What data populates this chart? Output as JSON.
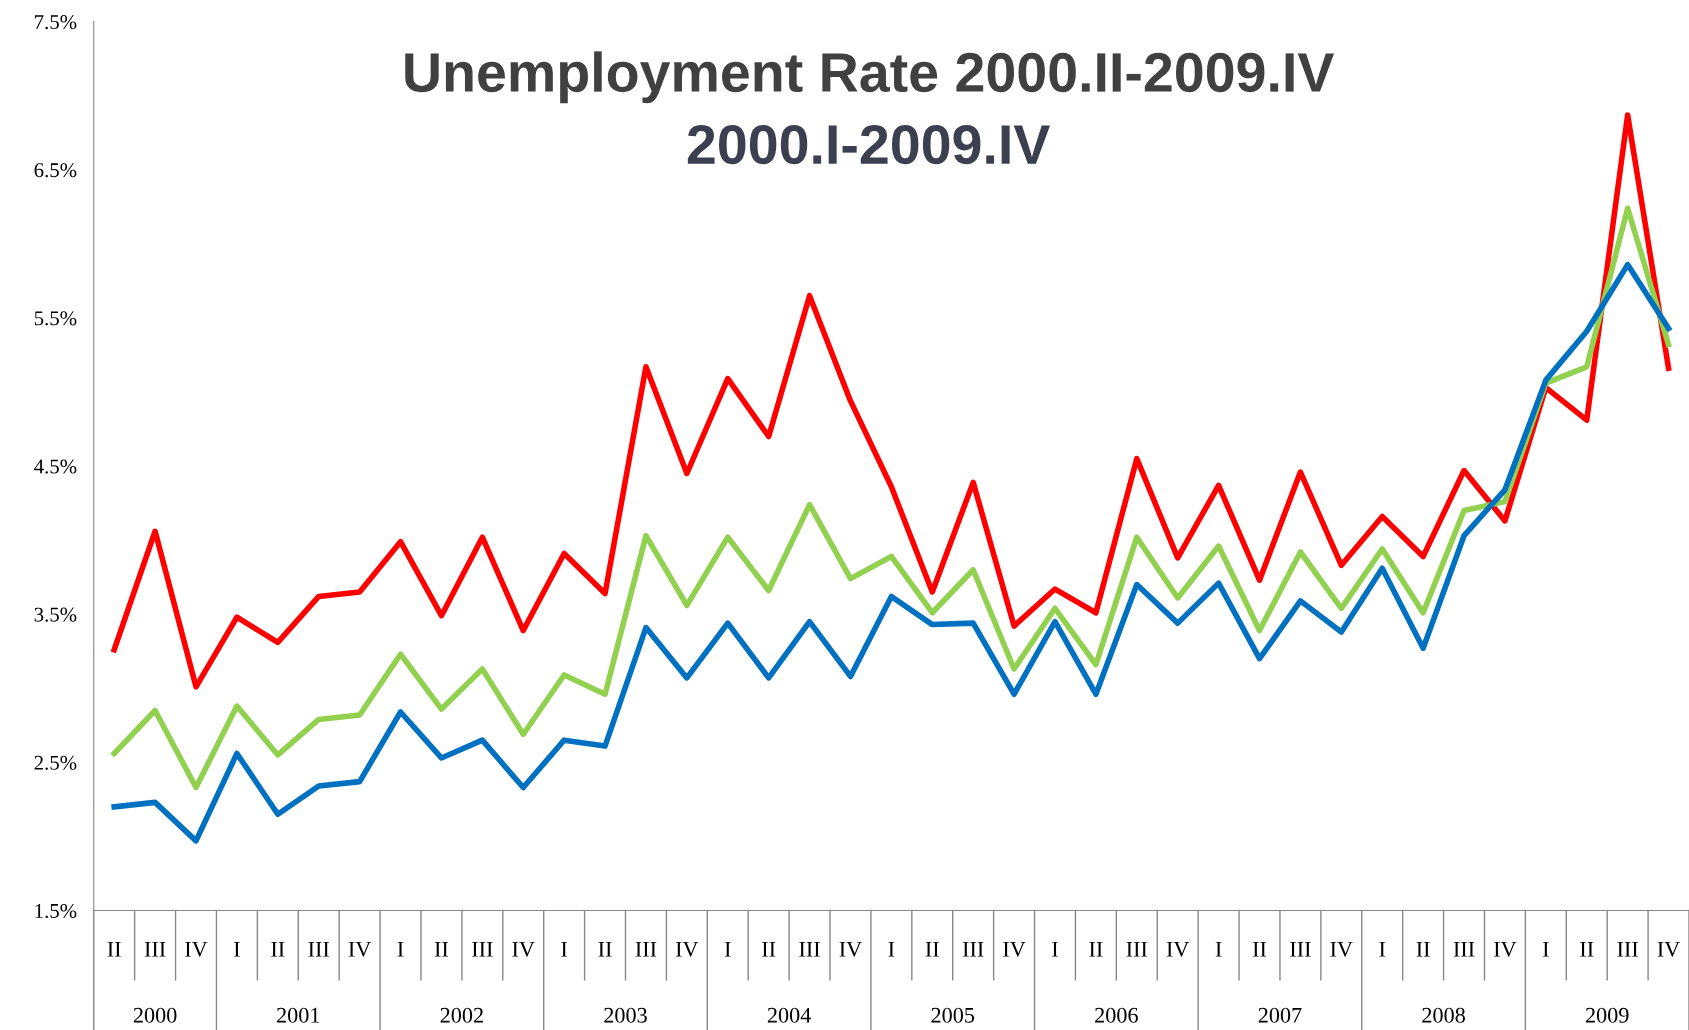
{
  "chart_data": {
    "type": "line",
    "title": "Unemployment Rate 2000.II-2009.IV",
    "subtitle": "2000.I-2009.IV",
    "categories": [
      "II",
      "III",
      "IV",
      "I",
      "II",
      "III",
      "IV",
      "I",
      "II",
      "III",
      "IV",
      "I",
      "II",
      "III",
      "IV",
      "I",
      "II",
      "III",
      "IV",
      "I",
      "II",
      "III",
      "IV",
      "I",
      "II",
      "III",
      "IV",
      "I",
      "II",
      "III",
      "IV",
      "I",
      "II",
      "III",
      "IV",
      "I",
      "II",
      "III",
      "IV"
    ],
    "annotations": [
      "2000",
      "2001",
      "2002",
      "2003",
      "2004",
      "2005",
      "2006",
      "2007",
      "2008",
      "2009"
    ],
    "series": [
      {
        "color": "#ff0000",
        "values": [
          3.26,
          4.06,
          3.01,
          3.48,
          3.31,
          3.62,
          3.65,
          3.99,
          3.49,
          4.02,
          3.39,
          3.91,
          3.64,
          5.17,
          4.45,
          5.09,
          4.7,
          5.65,
          4.94,
          4.36,
          3.65,
          4.39,
          3.42,
          3.67,
          3.51,
          4.55,
          3.88,
          4.37,
          3.73,
          4.46,
          3.83,
          4.16,
          3.89,
          4.47,
          4.13,
          5.03,
          4.81,
          6.87,
          5.16
        ]
      },
      {
        "color": "#92d050",
        "values": [
          2.56,
          2.85,
          2.33,
          2.88,
          2.55,
          2.79,
          2.82,
          3.23,
          2.86,
          3.13,
          2.69,
          3.09,
          2.96,
          4.03,
          3.56,
          4.02,
          3.66,
          4.24,
          3.74,
          3.89,
          3.51,
          3.8,
          3.13,
          3.54,
          3.16,
          4.02,
          3.61,
          3.96,
          3.39,
          3.92,
          3.54,
          3.94,
          3.51,
          4.2,
          4.26,
          5.06,
          5.17,
          6.24,
          5.32
        ]
      },
      {
        "color": "#0070c0",
        "values": [
          2.2,
          2.23,
          1.97,
          2.56,
          2.15,
          2.34,
          2.37,
          2.84,
          2.53,
          2.65,
          2.33,
          2.65,
          2.61,
          3.41,
          3.07,
          3.44,
          3.07,
          3.45,
          3.08,
          3.62,
          3.43,
          3.44,
          2.96,
          3.45,
          2.96,
          3.7,
          3.44,
          3.71,
          3.2,
          3.59,
          3.38,
          3.81,
          3.27,
          4.03,
          4.34,
          5.08,
          5.41,
          5.86,
          5.43
        ]
      }
    ],
    "ylim": [
      1.5,
      7.5
    ],
    "yticks": [
      {
        "value": 1.5,
        "label": "1.5%"
      },
      {
        "value": 2.5,
        "label": "2.5%"
      },
      {
        "value": 3.5,
        "label": "3.5%"
      },
      {
        "value": 4.5,
        "label": "4.5%"
      },
      {
        "value": 5.5,
        "label": "5.5%"
      },
      {
        "value": 6.5,
        "label": "6.5%"
      },
      {
        "value": 7.5,
        "label": "7.5%"
      }
    ],
    "grid": false,
    "marker": "none",
    "line_style": "solid"
  }
}
